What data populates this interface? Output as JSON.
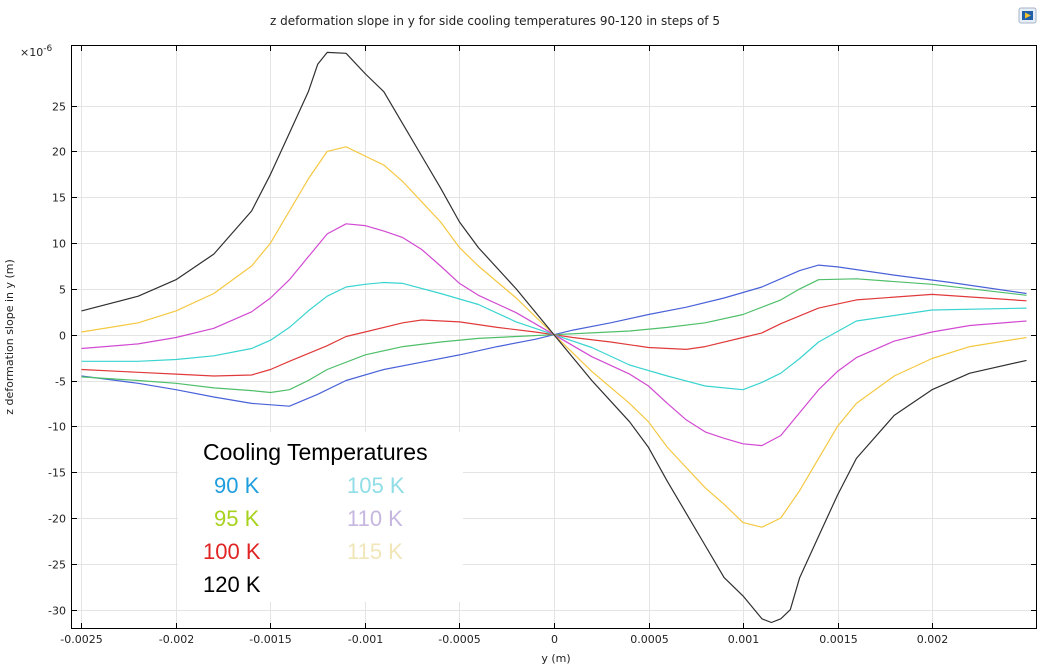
{
  "chart_data": {
    "type": "line",
    "title": "z deformation slope in y for side cooling temperatures 90-120 in steps of 5",
    "xlabel": "y (m)",
    "ylabel": "z deformation slope in y (m)",
    "y_multiplier": "×10",
    "y_exponent": "-6",
    "xlim": [
      -0.00255,
      0.00255
    ],
    "ylim": [
      -32,
      31.5
    ],
    "x_ticks": [
      -0.0025,
      -0.002,
      -0.0015,
      -0.001,
      -0.0005,
      0,
      0.0005,
      0.001,
      0.0015,
      0.002
    ],
    "x_tick_labels": [
      "-0.0025",
      "-0.002",
      "-0.0015",
      "-0.001",
      "-0.0005",
      "0",
      "0.0005",
      "0.001",
      "0.0015",
      "0.002"
    ],
    "y_ticks": [
      -30,
      -25,
      -20,
      -15,
      -10,
      -5,
      0,
      5,
      10,
      15,
      20,
      25
    ],
    "y_tick_labels": [
      "-30",
      "-25",
      "-20",
      "-15",
      "-10",
      "-5",
      "0",
      "5",
      "10",
      "15",
      "20",
      "25"
    ],
    "grid": true,
    "series": [
      {
        "color": "#4a62d8",
        "x": [
          -0.0025,
          -0.0022,
          -0.002,
          -0.0018,
          -0.0016,
          -0.0014,
          -0.00125,
          -0.0011,
          -0.0009,
          -0.0007,
          -0.0005,
          -0.0003,
          -0.0001,
          0,
          0.0001,
          0.0003,
          0.0005,
          0.0007,
          0.0009,
          0.0011,
          0.0013,
          0.0014,
          0.0015,
          0.0018,
          0.0021,
          0.0025
        ],
        "y": [
          -4.5,
          -5.3,
          -6.0,
          -6.8,
          -7.5,
          -7.8,
          -6.5,
          -5.0,
          -3.8,
          -3.0,
          -2.2,
          -1.3,
          -0.5,
          0,
          0.5,
          1.3,
          2.2,
          3.0,
          4.0,
          5.2,
          7.0,
          7.6,
          7.4,
          6.5,
          5.7,
          4.5
        ]
      },
      {
        "color": "#4fbf6a",
        "x": [
          -0.0025,
          -0.0022,
          -0.002,
          -0.0018,
          -0.0016,
          -0.0015,
          -0.0014,
          -0.0013,
          -0.0012,
          -0.001,
          -0.0008,
          -0.0006,
          -0.0004,
          -0.0002,
          0,
          0.0002,
          0.0004,
          0.0006,
          0.0008,
          0.001,
          0.0012,
          0.0013,
          0.0014,
          0.0016,
          0.002,
          0.0025
        ],
        "y": [
          -4.6,
          -5.0,
          -5.3,
          -5.8,
          -6.1,
          -6.3,
          -6.0,
          -5.0,
          -3.8,
          -2.2,
          -1.3,
          -0.8,
          -0.4,
          -0.2,
          0,
          0.2,
          0.4,
          0.8,
          1.3,
          2.2,
          3.8,
          5.0,
          6.0,
          6.1,
          5.5,
          4.3
        ]
      },
      {
        "color": "#e03a3a",
        "x": [
          -0.0025,
          -0.0022,
          -0.002,
          -0.0018,
          -0.0016,
          -0.0015,
          -0.0014,
          -0.0012,
          -0.0011,
          -0.001,
          -0.0008,
          -0.0007,
          -0.0005,
          -0.0003,
          -0.0001,
          0,
          0.0001,
          0.0003,
          0.0005,
          0.0007,
          0.0008,
          0.001,
          0.0011,
          0.0012,
          0.0014,
          0.0016,
          0.002,
          0.0025
        ],
        "y": [
          -3.8,
          -4.1,
          -4.3,
          -4.5,
          -4.4,
          -3.8,
          -2.9,
          -1.2,
          -0.2,
          0.3,
          1.3,
          1.6,
          1.4,
          0.8,
          0.3,
          0,
          -0.3,
          -0.8,
          -1.4,
          -1.6,
          -1.3,
          -0.3,
          0.2,
          1.2,
          2.9,
          3.8,
          4.4,
          3.7
        ]
      },
      {
        "color": "#3ad4d0",
        "x": [
          -0.0025,
          -0.0022,
          -0.002,
          -0.0018,
          -0.0016,
          -0.0015,
          -0.0014,
          -0.0013,
          -0.0012,
          -0.0011,
          -0.001,
          -0.0009,
          -0.0008,
          -0.0006,
          -0.0004,
          -0.0002,
          0,
          0.0002,
          0.0004,
          0.0006,
          0.0008,
          0.0009,
          0.001,
          0.0011,
          0.0012,
          0.0013,
          0.0014,
          0.0016,
          0.002,
          0.0025
        ],
        "y": [
          -2.9,
          -2.9,
          -2.7,
          -2.3,
          -1.5,
          -0.6,
          0.8,
          2.6,
          4.2,
          5.2,
          5.5,
          5.7,
          5.6,
          4.5,
          3.3,
          1.4,
          0,
          -1.4,
          -3.3,
          -4.5,
          -5.6,
          -5.8,
          -6.0,
          -5.2,
          -4.2,
          -2.6,
          -0.8,
          1.5,
          2.7,
          2.9
        ]
      },
      {
        "color": "#d24ad2",
        "x": [
          -0.0025,
          -0.0022,
          -0.002,
          -0.0018,
          -0.0016,
          -0.0015,
          -0.0014,
          -0.0013,
          -0.0012,
          -0.0011,
          -0.001,
          -0.0009,
          -0.0008,
          -0.0007,
          -0.0006,
          -0.0005,
          -0.0004,
          -0.0002,
          0,
          0.0002,
          0.0004,
          0.0005,
          0.0006,
          0.0007,
          0.0008,
          0.0009,
          0.001,
          0.0011,
          0.0012,
          0.0013,
          0.0014,
          0.0015,
          0.0016,
          0.0018,
          0.002,
          0.0022,
          0.0025
        ],
        "y": [
          -1.5,
          -1.0,
          -0.3,
          0.7,
          2.5,
          4.0,
          6.0,
          8.5,
          11.0,
          12.1,
          11.9,
          11.3,
          10.6,
          9.3,
          7.5,
          5.6,
          4.3,
          2.4,
          0,
          -2.4,
          -4.3,
          -5.6,
          -7.5,
          -9.3,
          -10.6,
          -11.3,
          -11.9,
          -12.1,
          -11.0,
          -8.5,
          -6.0,
          -4.0,
          -2.5,
          -0.7,
          0.3,
          1.0,
          1.5
        ]
      },
      {
        "color": "#f5c842",
        "x": [
          -0.0025,
          -0.0022,
          -0.002,
          -0.0018,
          -0.0016,
          -0.0015,
          -0.0014,
          -0.0013,
          -0.0012,
          -0.0011,
          -0.001,
          -0.0009,
          -0.0008,
          -0.0007,
          -0.0006,
          -0.0005,
          -0.0004,
          -0.0002,
          0,
          0.0002,
          0.0004,
          0.0005,
          0.0006,
          0.0007,
          0.0008,
          0.0009,
          0.001,
          0.0011,
          0.0012,
          0.0013,
          0.0014,
          0.0015,
          0.0016,
          0.0018,
          0.002,
          0.0022,
          0.0025
        ],
        "y": [
          0.3,
          1.3,
          2.6,
          4.5,
          7.5,
          10.0,
          13.5,
          17.0,
          20.0,
          20.5,
          19.5,
          18.5,
          16.7,
          14.5,
          12.3,
          9.5,
          7.5,
          4.0,
          0,
          -4.0,
          -7.5,
          -9.5,
          -12.3,
          -14.5,
          -16.7,
          -18.5,
          -20.5,
          -21.0,
          -20.0,
          -17.0,
          -13.5,
          -10.0,
          -7.5,
          -4.5,
          -2.6,
          -1.3,
          -0.3
        ]
      },
      {
        "color": "#303030",
        "x": [
          -0.0025,
          -0.0022,
          -0.002,
          -0.0018,
          -0.0016,
          -0.0015,
          -0.0014,
          -0.0013,
          -0.00125,
          -0.0012,
          -0.0011,
          -0.001,
          -0.0009,
          -0.0008,
          -0.0007,
          -0.0006,
          -0.0005,
          -0.0004,
          -0.0002,
          0,
          0.0002,
          0.0004,
          0.0005,
          0.0006,
          0.0007,
          0.0008,
          0.0009,
          0.001,
          0.0011,
          0.00115,
          0.0012,
          0.00125,
          0.0013,
          0.0014,
          0.0015,
          0.0016,
          0.0018,
          0.002,
          0.0022,
          0.0025
        ],
        "y": [
          2.6,
          4.2,
          6.0,
          8.8,
          13.5,
          17.5,
          22.0,
          26.5,
          29.5,
          30.8,
          30.7,
          28.5,
          26.5,
          23.0,
          19.5,
          16.0,
          12.3,
          9.5,
          5.0,
          0,
          -5.0,
          -9.5,
          -12.3,
          -16.0,
          -19.5,
          -23.0,
          -26.5,
          -28.5,
          -31.0,
          -31.4,
          -31.0,
          -30.0,
          -26.5,
          -22.0,
          -17.5,
          -13.5,
          -8.8,
          -6.0,
          -4.2,
          -2.8
        ]
      }
    ]
  },
  "legend": {
    "title": "Cooling Temperatures",
    "items": [
      {
        "label": "90 K",
        "color": "#1f9ede"
      },
      {
        "label": "95 K",
        "color": "#a7d21e"
      },
      {
        "label": "100 K",
        "color": "#e02424"
      },
      {
        "label": "120 K",
        "color": "#000000"
      },
      {
        "label": "105 K",
        "color": "#8fdde6"
      },
      {
        "label": "110 K",
        "color": "#c6b7e0"
      },
      {
        "label": "115 K",
        "color": "#f1e6b8"
      }
    ]
  }
}
